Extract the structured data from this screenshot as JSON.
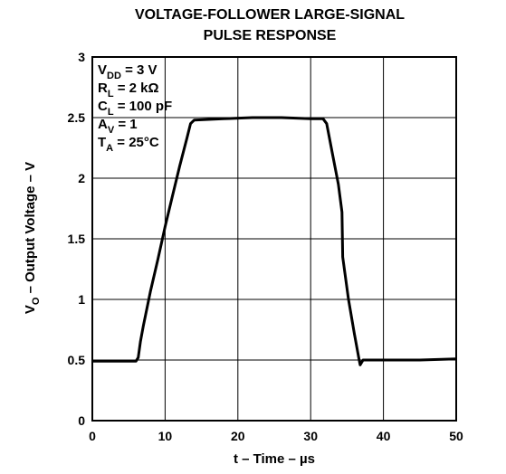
{
  "chart_data": {
    "type": "line",
    "title_lines": [
      "VOLTAGE-FOLLOWER LARGE-SIGNAL",
      "PULSE RESPONSE"
    ],
    "xlabel": "t – Time – µs",
    "ylabel": {
      "prefix": "V",
      "sub": "O",
      "suffix": " – Output Voltage – V"
    },
    "xlim": [
      0,
      50
    ],
    "ylim": [
      0,
      3
    ],
    "x_ticks": [
      0,
      10,
      20,
      30,
      40,
      50
    ],
    "x_tick_labels": [
      "0",
      "10",
      "20",
      "30",
      "40",
      "50"
    ],
    "y_ticks": [
      0,
      0.5,
      1,
      1.5,
      2,
      2.5,
      3
    ],
    "y_tick_labels": [
      "0",
      "0.5",
      "1",
      "1.5",
      "2",
      "2.5",
      "3"
    ],
    "grid": true,
    "conditions": [
      {
        "base": "V",
        "sub": "DD",
        "rest": " = 3 V"
      },
      {
        "base": "R",
        "sub": "L",
        "rest": " = 2 kΩ"
      },
      {
        "base": "C",
        "sub": "L",
        "rest": " = 100 pF"
      },
      {
        "base": "A",
        "sub": "V",
        "rest": " = 1"
      },
      {
        "base": "T",
        "sub": "A",
        "rest": " = 25°C"
      }
    ],
    "series": [
      {
        "color": "#000000",
        "points": [
          [
            0,
            0.49
          ],
          [
            3,
            0.49
          ],
          [
            6,
            0.49
          ],
          [
            6.3,
            0.52
          ],
          [
            6.6,
            0.65
          ],
          [
            7,
            0.78
          ],
          [
            8,
            1.07
          ],
          [
            9,
            1.33
          ],
          [
            10,
            1.6
          ],
          [
            11,
            1.85
          ],
          [
            12,
            2.1
          ],
          [
            13,
            2.33
          ],
          [
            13.5,
            2.45
          ],
          [
            14,
            2.48
          ],
          [
            18,
            2.49
          ],
          [
            22,
            2.5
          ],
          [
            26,
            2.5
          ],
          [
            30,
            2.49
          ],
          [
            31.7,
            2.49
          ],
          [
            32.2,
            2.45
          ],
          [
            33,
            2.2
          ],
          [
            33.8,
            1.95
          ],
          [
            34.3,
            1.72
          ],
          [
            34.4,
            1.35
          ],
          [
            35.2,
            1.0
          ],
          [
            36,
            0.72
          ],
          [
            36.6,
            0.52
          ],
          [
            36.8,
            0.46
          ],
          [
            37.2,
            0.5
          ],
          [
            40,
            0.5
          ],
          [
            45,
            0.5
          ],
          [
            50,
            0.51
          ]
        ]
      }
    ]
  }
}
